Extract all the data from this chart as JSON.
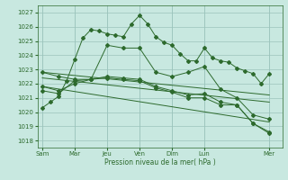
{
  "background_color": "#c8e8e0",
  "grid_color": "#9cc4bc",
  "line_color": "#2d6a2d",
  "marker_color": "#2d6a2d",
  "tick_color": "#2d6a2d",
  "xlabel": "Pression niveau de la mer( hPa )",
  "ylim": [
    1017.5,
    1027.5
  ],
  "yticks": [
    1018,
    1019,
    1020,
    1021,
    1022,
    1023,
    1024,
    1025,
    1026,
    1027
  ],
  "xtick_labels": [
    "Sam",
    "Mar",
    "Jeu",
    "Ven",
    "Dim",
    "Lun",
    "Mer"
  ],
  "xtick_positions": [
    0,
    2,
    4,
    6,
    8,
    10,
    14
  ],
  "xlim": [
    -0.3,
    14.8
  ],
  "series1_x": [
    0,
    0.5,
    1,
    1.5,
    2,
    2.5,
    3,
    3.5,
    4,
    4.5,
    5,
    5.5,
    6,
    6.5,
    7,
    7.5,
    8,
    8.5,
    9,
    9.5,
    10,
    10.5,
    11,
    11.5,
    12,
    12.5,
    13,
    13.5,
    14
  ],
  "series1_y": [
    1020.3,
    1020.7,
    1021.1,
    1022.2,
    1023.7,
    1025.2,
    1025.8,
    1025.7,
    1025.5,
    1025.4,
    1025.3,
    1026.2,
    1026.8,
    1026.2,
    1025.3,
    1024.9,
    1024.7,
    1024.1,
    1023.6,
    1023.6,
    1024.5,
    1023.8,
    1023.6,
    1023.5,
    1023.1,
    1022.9,
    1022.7,
    1022.0,
    1022.7
  ],
  "series2_x": [
    0,
    1,
    2,
    3,
    4,
    5,
    6,
    7,
    8,
    9,
    10,
    11,
    12,
    13,
    14
  ],
  "series2_y": [
    1022.8,
    1022.5,
    1022.3,
    1022.3,
    1024.7,
    1024.5,
    1024.5,
    1022.8,
    1022.5,
    1022.8,
    1023.2,
    1021.6,
    1021.0,
    1019.8,
    1019.5
  ],
  "trend1_x": [
    0,
    14
  ],
  "trend1_y": [
    1022.8,
    1021.2
  ],
  "trend2_x": [
    0,
    14
  ],
  "trend2_y": [
    1022.4,
    1020.7
  ],
  "trend3_x": [
    0,
    14
  ],
  "trend3_y": [
    1021.8,
    1019.3
  ],
  "series3_x": [
    0,
    1,
    2,
    3,
    4,
    5,
    6,
    7,
    8,
    9,
    10,
    11,
    12,
    13,
    14
  ],
  "series3_y": [
    1021.8,
    1021.5,
    1022.0,
    1022.3,
    1022.5,
    1022.4,
    1022.3,
    1021.8,
    1021.5,
    1021.2,
    1021.3,
    1020.7,
    1020.5,
    1019.2,
    1018.6
  ],
  "series4_x": [
    0,
    1,
    2,
    3,
    4,
    5,
    6,
    7,
    8,
    9,
    10,
    11,
    12,
    13,
    14
  ],
  "series4_y": [
    1021.5,
    1021.3,
    1022.2,
    1022.3,
    1022.4,
    1022.3,
    1022.2,
    1021.7,
    1021.4,
    1021.0,
    1021.0,
    1020.5,
    1020.5,
    1019.2,
    1018.5
  ]
}
